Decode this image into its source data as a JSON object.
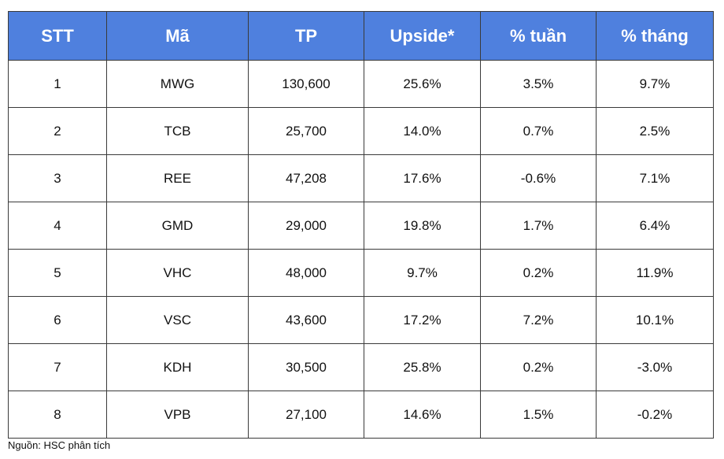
{
  "table": {
    "header": [
      "STT",
      "Mã",
      "TP",
      "Upside*",
      "% tuần",
      "% tháng"
    ],
    "rows": [
      [
        "1",
        "MWG",
        "130,600",
        "25.6%",
        "3.5%",
        "9.7%"
      ],
      [
        "2",
        "TCB",
        "25,700",
        "14.0%",
        "0.7%",
        "2.5%"
      ],
      [
        "3",
        "REE",
        "47,208",
        "17.6%",
        "-0.6%",
        "7.1%"
      ],
      [
        "4",
        "GMD",
        "29,000",
        "19.8%",
        "1.7%",
        "6.4%"
      ],
      [
        "5",
        "VHC",
        "48,000",
        "9.7%",
        "0.2%",
        "11.9%"
      ],
      [
        "6",
        "VSC",
        "43,600",
        "17.2%",
        "7.2%",
        "10.1%"
      ],
      [
        "7",
        "KDH",
        "30,500",
        "25.8%",
        "0.2%",
        "-3.0%"
      ],
      [
        "8",
        "VPB",
        "27,100",
        "14.6%",
        "1.5%",
        "-0.2%"
      ]
    ]
  },
  "footer": {
    "source": "Nguồn: HSC phân tích"
  }
}
